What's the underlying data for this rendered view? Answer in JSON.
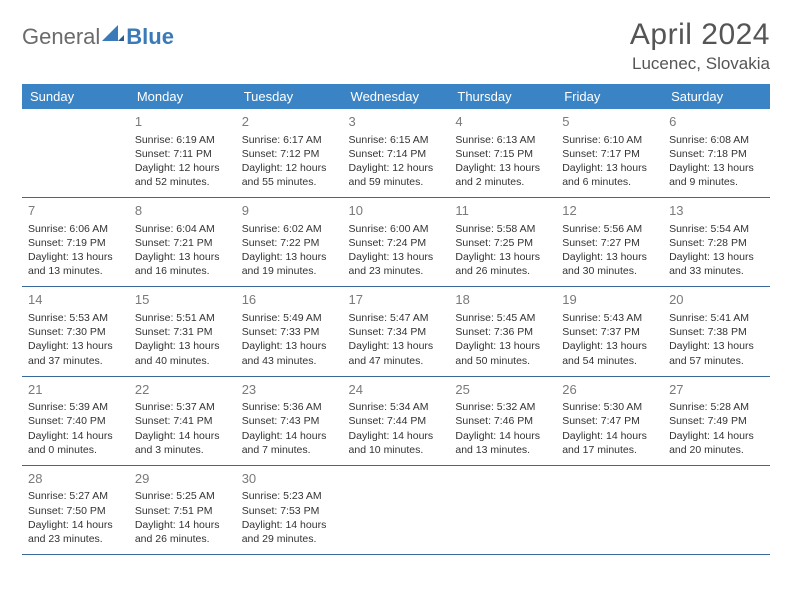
{
  "logo": {
    "part1": "General",
    "part2": "Blue"
  },
  "title": "April 2024",
  "location": "Lucenec, Slovakia",
  "colors": {
    "header_bg": "#3a84c5",
    "header_text": "#ffffff",
    "border": "#3a6a9a",
    "daynum": "#7a7a7a",
    "body_text": "#333333",
    "logo_gray": "#6b6b6b",
    "logo_blue": "#3a7ab8"
  },
  "weekdays": [
    "Sunday",
    "Monday",
    "Tuesday",
    "Wednesday",
    "Thursday",
    "Friday",
    "Saturday"
  ],
  "weeks": [
    [
      {
        "day": "",
        "sunrise": "",
        "sunset": "",
        "daylight": ""
      },
      {
        "day": "1",
        "sunrise": "Sunrise: 6:19 AM",
        "sunset": "Sunset: 7:11 PM",
        "daylight": "Daylight: 12 hours and 52 minutes."
      },
      {
        "day": "2",
        "sunrise": "Sunrise: 6:17 AM",
        "sunset": "Sunset: 7:12 PM",
        "daylight": "Daylight: 12 hours and 55 minutes."
      },
      {
        "day": "3",
        "sunrise": "Sunrise: 6:15 AM",
        "sunset": "Sunset: 7:14 PM",
        "daylight": "Daylight: 12 hours and 59 minutes."
      },
      {
        "day": "4",
        "sunrise": "Sunrise: 6:13 AM",
        "sunset": "Sunset: 7:15 PM",
        "daylight": "Daylight: 13 hours and 2 minutes."
      },
      {
        "day": "5",
        "sunrise": "Sunrise: 6:10 AM",
        "sunset": "Sunset: 7:17 PM",
        "daylight": "Daylight: 13 hours and 6 minutes."
      },
      {
        "day": "6",
        "sunrise": "Sunrise: 6:08 AM",
        "sunset": "Sunset: 7:18 PM",
        "daylight": "Daylight: 13 hours and 9 minutes."
      }
    ],
    [
      {
        "day": "7",
        "sunrise": "Sunrise: 6:06 AM",
        "sunset": "Sunset: 7:19 PM",
        "daylight": "Daylight: 13 hours and 13 minutes."
      },
      {
        "day": "8",
        "sunrise": "Sunrise: 6:04 AM",
        "sunset": "Sunset: 7:21 PM",
        "daylight": "Daylight: 13 hours and 16 minutes."
      },
      {
        "day": "9",
        "sunrise": "Sunrise: 6:02 AM",
        "sunset": "Sunset: 7:22 PM",
        "daylight": "Daylight: 13 hours and 19 minutes."
      },
      {
        "day": "10",
        "sunrise": "Sunrise: 6:00 AM",
        "sunset": "Sunset: 7:24 PM",
        "daylight": "Daylight: 13 hours and 23 minutes."
      },
      {
        "day": "11",
        "sunrise": "Sunrise: 5:58 AM",
        "sunset": "Sunset: 7:25 PM",
        "daylight": "Daylight: 13 hours and 26 minutes."
      },
      {
        "day": "12",
        "sunrise": "Sunrise: 5:56 AM",
        "sunset": "Sunset: 7:27 PM",
        "daylight": "Daylight: 13 hours and 30 minutes."
      },
      {
        "day": "13",
        "sunrise": "Sunrise: 5:54 AM",
        "sunset": "Sunset: 7:28 PM",
        "daylight": "Daylight: 13 hours and 33 minutes."
      }
    ],
    [
      {
        "day": "14",
        "sunrise": "Sunrise: 5:53 AM",
        "sunset": "Sunset: 7:30 PM",
        "daylight": "Daylight: 13 hours and 37 minutes."
      },
      {
        "day": "15",
        "sunrise": "Sunrise: 5:51 AM",
        "sunset": "Sunset: 7:31 PM",
        "daylight": "Daylight: 13 hours and 40 minutes."
      },
      {
        "day": "16",
        "sunrise": "Sunrise: 5:49 AM",
        "sunset": "Sunset: 7:33 PM",
        "daylight": "Daylight: 13 hours and 43 minutes."
      },
      {
        "day": "17",
        "sunrise": "Sunrise: 5:47 AM",
        "sunset": "Sunset: 7:34 PM",
        "daylight": "Daylight: 13 hours and 47 minutes."
      },
      {
        "day": "18",
        "sunrise": "Sunrise: 5:45 AM",
        "sunset": "Sunset: 7:36 PM",
        "daylight": "Daylight: 13 hours and 50 minutes."
      },
      {
        "day": "19",
        "sunrise": "Sunrise: 5:43 AM",
        "sunset": "Sunset: 7:37 PM",
        "daylight": "Daylight: 13 hours and 54 minutes."
      },
      {
        "day": "20",
        "sunrise": "Sunrise: 5:41 AM",
        "sunset": "Sunset: 7:38 PM",
        "daylight": "Daylight: 13 hours and 57 minutes."
      }
    ],
    [
      {
        "day": "21",
        "sunrise": "Sunrise: 5:39 AM",
        "sunset": "Sunset: 7:40 PM",
        "daylight": "Daylight: 14 hours and 0 minutes."
      },
      {
        "day": "22",
        "sunrise": "Sunrise: 5:37 AM",
        "sunset": "Sunset: 7:41 PM",
        "daylight": "Daylight: 14 hours and 3 minutes."
      },
      {
        "day": "23",
        "sunrise": "Sunrise: 5:36 AM",
        "sunset": "Sunset: 7:43 PM",
        "daylight": "Daylight: 14 hours and 7 minutes."
      },
      {
        "day": "24",
        "sunrise": "Sunrise: 5:34 AM",
        "sunset": "Sunset: 7:44 PM",
        "daylight": "Daylight: 14 hours and 10 minutes."
      },
      {
        "day": "25",
        "sunrise": "Sunrise: 5:32 AM",
        "sunset": "Sunset: 7:46 PM",
        "daylight": "Daylight: 14 hours and 13 minutes."
      },
      {
        "day": "26",
        "sunrise": "Sunrise: 5:30 AM",
        "sunset": "Sunset: 7:47 PM",
        "daylight": "Daylight: 14 hours and 17 minutes."
      },
      {
        "day": "27",
        "sunrise": "Sunrise: 5:28 AM",
        "sunset": "Sunset: 7:49 PM",
        "daylight": "Daylight: 14 hours and 20 minutes."
      }
    ],
    [
      {
        "day": "28",
        "sunrise": "Sunrise: 5:27 AM",
        "sunset": "Sunset: 7:50 PM",
        "daylight": "Daylight: 14 hours and 23 minutes."
      },
      {
        "day": "29",
        "sunrise": "Sunrise: 5:25 AM",
        "sunset": "Sunset: 7:51 PM",
        "daylight": "Daylight: 14 hours and 26 minutes."
      },
      {
        "day": "30",
        "sunrise": "Sunrise: 5:23 AM",
        "sunset": "Sunset: 7:53 PM",
        "daylight": "Daylight: 14 hours and 29 minutes."
      },
      {
        "day": "",
        "sunrise": "",
        "sunset": "",
        "daylight": ""
      },
      {
        "day": "",
        "sunrise": "",
        "sunset": "",
        "daylight": ""
      },
      {
        "day": "",
        "sunrise": "",
        "sunset": "",
        "daylight": ""
      },
      {
        "day": "",
        "sunrise": "",
        "sunset": "",
        "daylight": ""
      }
    ]
  ]
}
